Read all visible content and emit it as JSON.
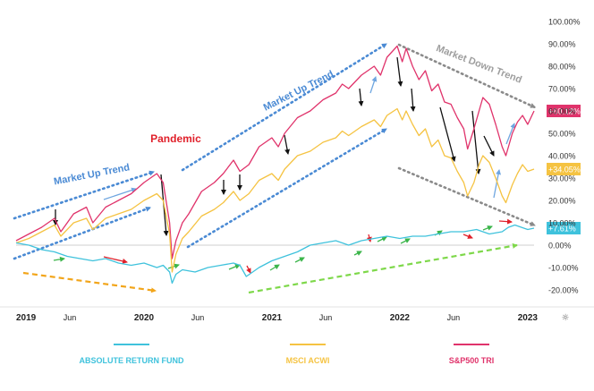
{
  "chart_data": {
    "type": "line",
    "x_labels": [
      "2019",
      "Jun",
      "2020",
      "Jun",
      "2021",
      "Jun",
      "2022",
      "Jun",
      "2023"
    ],
    "y_ticks": [
      "100.00%",
      "90.00%",
      "80.00%",
      "70.00%",
      "60.00%",
      "50.00%",
      "40.00%",
      "30.00%",
      "20.00%",
      "10.00%",
      "0.00%",
      "-10.00%",
      "-20.00%"
    ],
    "ylim": [
      -25,
      100
    ],
    "series": [
      {
        "name": "S&P500 TRI",
        "color": "#e0336b",
        "end_label": "+60.12%",
        "points": [
          [
            2019.0,
            2
          ],
          [
            2019.1,
            5
          ],
          [
            2019.2,
            8
          ],
          [
            2019.3,
            12
          ],
          [
            2019.35,
            6
          ],
          [
            2019.45,
            14
          ],
          [
            2019.55,
            17
          ],
          [
            2019.6,
            10
          ],
          [
            2019.7,
            17
          ],
          [
            2019.8,
            20
          ],
          [
            2019.9,
            23
          ],
          [
            2020.0,
            28
          ],
          [
            2020.1,
            32
          ],
          [
            2020.15,
            28
          ],
          [
            2020.2,
            10
          ],
          [
            2020.22,
            -6
          ],
          [
            2020.25,
            2
          ],
          [
            2020.3,
            10
          ],
          [
            2020.35,
            14
          ],
          [
            2020.45,
            24
          ],
          [
            2020.55,
            28
          ],
          [
            2020.62,
            32
          ],
          [
            2020.7,
            38
          ],
          [
            2020.75,
            33
          ],
          [
            2020.82,
            36
          ],
          [
            2020.9,
            44
          ],
          [
            2021.0,
            48
          ],
          [
            2021.05,
            44
          ],
          [
            2021.1,
            50
          ],
          [
            2021.2,
            57
          ],
          [
            2021.3,
            60
          ],
          [
            2021.4,
            65
          ],
          [
            2021.5,
            68
          ],
          [
            2021.55,
            72
          ],
          [
            2021.6,
            70
          ],
          [
            2021.7,
            76
          ],
          [
            2021.8,
            80
          ],
          [
            2021.85,
            76
          ],
          [
            2021.9,
            84
          ],
          [
            2021.98,
            89
          ],
          [
            2022.02,
            82
          ],
          [
            2022.05,
            88
          ],
          [
            2022.1,
            80
          ],
          [
            2022.15,
            74
          ],
          [
            2022.2,
            78
          ],
          [
            2022.25,
            69
          ],
          [
            2022.3,
            72
          ],
          [
            2022.35,
            64
          ],
          [
            2022.4,
            63
          ],
          [
            2022.45,
            57
          ],
          [
            2022.5,
            52
          ],
          [
            2022.53,
            43
          ],
          [
            2022.58,
            52
          ],
          [
            2022.62,
            60
          ],
          [
            2022.65,
            66
          ],
          [
            2022.7,
            63
          ],
          [
            2022.75,
            54
          ],
          [
            2022.8,
            44
          ],
          [
            2022.83,
            40
          ],
          [
            2022.88,
            50
          ],
          [
            2022.92,
            55
          ],
          [
            2022.96,
            58
          ],
          [
            2023.0,
            54
          ],
          [
            2023.05,
            60
          ]
        ]
      },
      {
        "name": "MSCI ACWI",
        "color": "#f5c342",
        "end_label": "+34.05%",
        "points": [
          [
            2019.0,
            1
          ],
          [
            2019.1,
            3
          ],
          [
            2019.2,
            6
          ],
          [
            2019.3,
            9
          ],
          [
            2019.35,
            4
          ],
          [
            2019.45,
            10
          ],
          [
            2019.55,
            12
          ],
          [
            2019.6,
            7
          ],
          [
            2019.7,
            12
          ],
          [
            2019.8,
            14
          ],
          [
            2019.9,
            16
          ],
          [
            2020.0,
            20
          ],
          [
            2020.1,
            23
          ],
          [
            2020.15,
            20
          ],
          [
            2020.2,
            5
          ],
          [
            2020.22,
            -12
          ],
          [
            2020.25,
            -4
          ],
          [
            2020.3,
            3
          ],
          [
            2020.35,
            6
          ],
          [
            2020.45,
            13
          ],
          [
            2020.55,
            16
          ],
          [
            2020.62,
            19
          ],
          [
            2020.7,
            24
          ],
          [
            2020.75,
            20
          ],
          [
            2020.82,
            23
          ],
          [
            2020.9,
            29
          ],
          [
            2021.0,
            32
          ],
          [
            2021.05,
            29
          ],
          [
            2021.1,
            34
          ],
          [
            2021.2,
            40
          ],
          [
            2021.3,
            42
          ],
          [
            2021.4,
            46
          ],
          [
            2021.5,
            48
          ],
          [
            2021.55,
            51
          ],
          [
            2021.6,
            49
          ],
          [
            2021.7,
            53
          ],
          [
            2021.8,
            56
          ],
          [
            2021.85,
            53
          ],
          [
            2021.9,
            58
          ],
          [
            2021.98,
            61
          ],
          [
            2022.02,
            56
          ],
          [
            2022.05,
            60
          ],
          [
            2022.1,
            54
          ],
          [
            2022.15,
            49
          ],
          [
            2022.2,
            52
          ],
          [
            2022.25,
            44
          ],
          [
            2022.3,
            47
          ],
          [
            2022.35,
            40
          ],
          [
            2022.4,
            39
          ],
          [
            2022.45,
            33
          ],
          [
            2022.5,
            28
          ],
          [
            2022.53,
            22
          ],
          [
            2022.58,
            28
          ],
          [
            2022.62,
            36
          ],
          [
            2022.65,
            40
          ],
          [
            2022.7,
            37
          ],
          [
            2022.75,
            30
          ],
          [
            2022.8,
            22
          ],
          [
            2022.83,
            19
          ],
          [
            2022.88,
            27
          ],
          [
            2022.92,
            32
          ],
          [
            2022.96,
            36
          ],
          [
            2023.0,
            33
          ],
          [
            2023.05,
            34
          ]
        ]
      },
      {
        "name": "ABSOLUTE RETURN FUND",
        "color": "#3fc2dc",
        "end_label": "+7.61%",
        "points": [
          [
            2019.0,
            1
          ],
          [
            2019.1,
            0
          ],
          [
            2019.2,
            -2
          ],
          [
            2019.3,
            -3
          ],
          [
            2019.4,
            -5
          ],
          [
            2019.5,
            -6
          ],
          [
            2019.6,
            -7
          ],
          [
            2019.7,
            -6
          ],
          [
            2019.8,
            -8
          ],
          [
            2019.9,
            -9
          ],
          [
            2020.0,
            -8
          ],
          [
            2020.1,
            -10
          ],
          [
            2020.15,
            -9
          ],
          [
            2020.2,
            -12
          ],
          [
            2020.22,
            -17
          ],
          [
            2020.25,
            -13
          ],
          [
            2020.3,
            -11
          ],
          [
            2020.4,
            -12
          ],
          [
            2020.5,
            -10
          ],
          [
            2020.6,
            -9
          ],
          [
            2020.7,
            -8
          ],
          [
            2020.75,
            -9
          ],
          [
            2020.8,
            -14
          ],
          [
            2020.85,
            -12
          ],
          [
            2020.9,
            -10
          ],
          [
            2021.0,
            -7
          ],
          [
            2021.1,
            -5
          ],
          [
            2021.2,
            -3
          ],
          [
            2021.3,
            0
          ],
          [
            2021.4,
            1
          ],
          [
            2021.5,
            2
          ],
          [
            2021.6,
            0
          ],
          [
            2021.7,
            2
          ],
          [
            2021.8,
            3
          ],
          [
            2021.9,
            4
          ],
          [
            2022.0,
            3
          ],
          [
            2022.1,
            4
          ],
          [
            2022.2,
            4
          ],
          [
            2022.3,
            5
          ],
          [
            2022.4,
            6
          ],
          [
            2022.5,
            6
          ],
          [
            2022.6,
            7
          ],
          [
            2022.7,
            5
          ],
          [
            2022.8,
            6
          ],
          [
            2022.85,
            8
          ],
          [
            2022.9,
            9
          ],
          [
            2022.95,
            8
          ],
          [
            2023.0,
            7
          ],
          [
            2023.05,
            7.6
          ]
        ]
      }
    ],
    "annotations": [
      {
        "text": "Pandemic",
        "color": "#e0202a",
        "x": 2020.05,
        "y": 46,
        "weight": "bold",
        "size": 12,
        "rot": 0
      },
      {
        "text": "Market Up Trend",
        "color": "#4a8ad4",
        "x": 2019.3,
        "y": 27,
        "weight": "bold",
        "size": 11,
        "rot": -11
      },
      {
        "text": "Market Up Trend",
        "color": "#4a8ad4",
        "x": 2020.95,
        "y": 60,
        "weight": "bold",
        "size": 11,
        "rot": -27
      },
      {
        "text": "Market Down Trend",
        "color": "#9e9e9e",
        "x": 2022.28,
        "y": 87,
        "weight": "bold",
        "size": 11,
        "rot": 21
      }
    ],
    "legend": [
      {
        "label": "ABSOLUTE RETURN FUND",
        "color": "#3fc2dc"
      },
      {
        "label": "MSCI ACWI",
        "color": "#f5c342"
      },
      {
        "label": "S&P500 TRI",
        "color": "#e0336b"
      }
    ],
    "gear_symbol": "☼",
    "grid": false,
    "legend_position": "bottom"
  }
}
